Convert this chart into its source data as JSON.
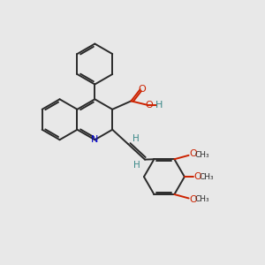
{
  "bg_color": "#e8e8e8",
  "bond_color": "#2a2a2a",
  "bond_width": 1.4,
  "dbo": 0.08,
  "N_color": "#0000cc",
  "O_color": "#cc2200",
  "H_color": "#3a8888",
  "figsize": [
    3.0,
    3.0
  ],
  "dpi": 100,
  "xlim": [
    0,
    10
  ],
  "ylim": [
    0,
    10
  ]
}
